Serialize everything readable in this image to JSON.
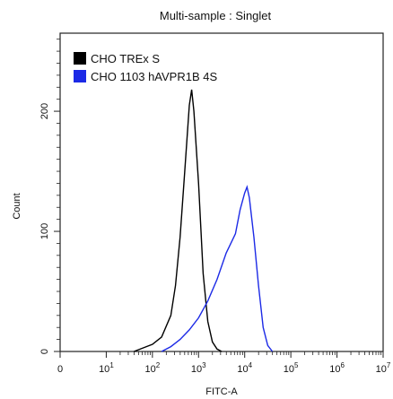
{
  "chart_data": {
    "type": "line",
    "title": "Multi-sample : Singlet",
    "xlabel": "FITC-A",
    "ylabel": "Count",
    "xscale": "log",
    "xlim": [
      0,
      7
    ],
    "ylim": [
      0,
      265
    ],
    "xtick_labels": [
      {
        "base": "0",
        "exp": ""
      },
      {
        "base": "10",
        "exp": "1"
      },
      {
        "base": "10",
        "exp": "2"
      },
      {
        "base": "10",
        "exp": "3"
      },
      {
        "base": "10",
        "exp": "4"
      },
      {
        "base": "10",
        "exp": "5"
      },
      {
        "base": "10",
        "exp": "6"
      },
      {
        "base": "10",
        "exp": "7"
      }
    ],
    "yticks": [
      0,
      100,
      200
    ],
    "ytick_labels": [
      "0",
      "100",
      "200"
    ],
    "legend_position": "top-left",
    "series": [
      {
        "name": "CHO TREx S",
        "color": "#000000",
        "points": [
          [
            1.6,
            0
          ],
          [
            1.8,
            3
          ],
          [
            2.0,
            6
          ],
          [
            2.2,
            12
          ],
          [
            2.4,
            30
          ],
          [
            2.5,
            55
          ],
          [
            2.6,
            95
          ],
          [
            2.7,
            150
          ],
          [
            2.8,
            205
          ],
          [
            2.85,
            218
          ],
          [
            2.9,
            200
          ],
          [
            3.0,
            140
          ],
          [
            3.1,
            65
          ],
          [
            3.2,
            25
          ],
          [
            3.3,
            8
          ],
          [
            3.4,
            2
          ],
          [
            3.5,
            0
          ]
        ]
      },
      {
        "name": "CHO 1103 hAVPR1B 4S",
        "color": "#1c2ae6",
        "points": [
          [
            2.2,
            0
          ],
          [
            2.4,
            4
          ],
          [
            2.6,
            10
          ],
          [
            2.8,
            18
          ],
          [
            3.0,
            28
          ],
          [
            3.2,
            42
          ],
          [
            3.4,
            60
          ],
          [
            3.6,
            82
          ],
          [
            3.8,
            98
          ],
          [
            3.9,
            118
          ],
          [
            4.0,
            132
          ],
          [
            4.05,
            137
          ],
          [
            4.1,
            128
          ],
          [
            4.2,
            95
          ],
          [
            4.3,
            55
          ],
          [
            4.4,
            20
          ],
          [
            4.5,
            5
          ],
          [
            4.6,
            0
          ]
        ]
      }
    ]
  }
}
